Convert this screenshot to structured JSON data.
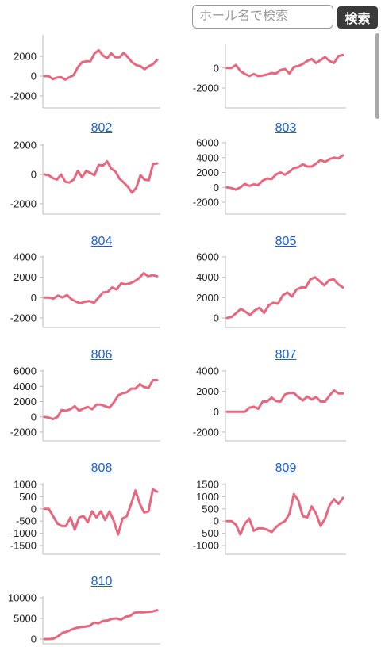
{
  "search": {
    "placeholder": "ホール名で検索",
    "button_label": "検索"
  },
  "colors": {
    "line": "#e8677f",
    "axis": "#bdbdbd",
    "link": "#1a5fd6"
  },
  "chart_data": [
    {
      "type": "line",
      "title": "",
      "ylim": [
        -2000,
        4000
      ],
      "ticks": [
        2000,
        0,
        -2000
      ],
      "values": [
        0,
        0,
        -300,
        -150,
        -100,
        -350,
        -100,
        100,
        900,
        1400,
        1500,
        1500,
        2300,
        2600,
        2100,
        1800,
        2300,
        1900,
        1900,
        2350,
        1900,
        1400,
        1100,
        1000,
        700,
        1000,
        1200,
        1650
      ]
    },
    {
      "type": "line",
      "title": "",
      "ylim": [
        -2000,
        2200
      ],
      "ticks": [
        0,
        -2000
      ],
      "values": [
        0,
        0,
        300,
        -300,
        -600,
        -800,
        -600,
        -800,
        -750,
        -650,
        -500,
        -550,
        -200,
        -100,
        -550,
        100,
        200,
        400,
        700,
        900,
        500,
        800,
        1100,
        700,
        500,
        1200,
        1300
      ]
    },
    {
      "type": "line",
      "title": "802",
      "ylim": [
        -2000,
        2000
      ],
      "ticks": [
        2000,
        0,
        -2000
      ],
      "values": [
        0,
        -50,
        -250,
        -350,
        0,
        -500,
        -550,
        -350,
        250,
        -200,
        250,
        100,
        -50,
        650,
        600,
        900,
        400,
        200,
        -300,
        -550,
        -850,
        -1250,
        -900,
        -50,
        -350,
        -400,
        700,
        750
      ]
    },
    {
      "type": "line",
      "title": "803",
      "ylim": [
        -2000,
        6000
      ],
      "ticks": [
        6000,
        4000,
        2000,
        0,
        -2000
      ],
      "values": [
        0,
        -100,
        -300,
        0,
        450,
        200,
        400,
        300,
        900,
        1200,
        1100,
        1750,
        2000,
        1700,
        2100,
        2600,
        2700,
        3100,
        2800,
        2800,
        3200,
        3700,
        3400,
        3800,
        4000,
        3900,
        4300
      ]
    },
    {
      "type": "line",
      "title": "804",
      "ylim": [
        -2000,
        4000
      ],
      "ticks": [
        4000,
        2000,
        0,
        -2000
      ],
      "values": [
        0,
        0,
        -100,
        200,
        0,
        250,
        -150,
        -400,
        -550,
        -400,
        -350,
        -500,
        0,
        500,
        550,
        1000,
        800,
        1400,
        1300,
        1400,
        1600,
        1900,
        2400,
        2100,
        2200,
        2100
      ]
    },
    {
      "type": "line",
      "title": "805",
      "ylim": [
        0,
        6000
      ],
      "ticks": [
        6000,
        4000,
        2000,
        0
      ],
      "values": [
        0,
        100,
        500,
        900,
        600,
        300,
        750,
        1000,
        500,
        1250,
        1500,
        1400,
        2200,
        2500,
        2100,
        2800,
        3000,
        3000,
        3800,
        4000,
        3600,
        3200,
        3700,
        3800,
        3300,
        3000
      ]
    },
    {
      "type": "line",
      "title": "806",
      "ylim": [
        -2000,
        6000
      ],
      "ticks": [
        6000,
        4000,
        2000,
        0,
        -2000
      ],
      "values": [
        0,
        -100,
        -300,
        0,
        900,
        800,
        1000,
        1400,
        800,
        1100,
        1300,
        1000,
        1600,
        1600,
        1400,
        1200,
        1900,
        2800,
        3100,
        3200,
        3700,
        3700,
        4300,
        3900,
        3800,
        4800,
        4800
      ]
    },
    {
      "type": "line",
      "title": "807",
      "ylim": [
        -2000,
        4000
      ],
      "ticks": [
        4000,
        2000,
        0,
        -2000
      ],
      "values": [
        0,
        0,
        0,
        0,
        0,
        400,
        500,
        300,
        1000,
        1000,
        1400,
        1050,
        1000,
        1700,
        1850,
        1850,
        1450,
        1100,
        1500,
        1200,
        1450,
        1000,
        1000,
        1600,
        2100,
        1800,
        1800
      ]
    },
    {
      "type": "line",
      "title": "808",
      "ylim": [
        -1500,
        1000
      ],
      "ticks": [
        1000,
        500,
        0,
        -500,
        -1000,
        -1500
      ],
      "values": [
        0,
        0,
        -300,
        -600,
        -700,
        -700,
        -350,
        -850,
        -350,
        -300,
        -550,
        -100,
        -350,
        -100,
        -450,
        -100,
        -500,
        -1050,
        -400,
        -300,
        200,
        750,
        200,
        -150,
        -100,
        800,
        700
      ]
    },
    {
      "type": "line",
      "title": "809",
      "ylim": [
        -1000,
        1500
      ],
      "ticks": [
        1500,
        1000,
        500,
        0,
        -500,
        -1000
      ],
      "values": [
        0,
        0,
        -150,
        -550,
        -100,
        100,
        -400,
        -300,
        -300,
        -350,
        -450,
        -250,
        -100,
        0,
        300,
        1100,
        850,
        200,
        150,
        600,
        300,
        -200,
        100,
        650,
        900,
        700,
        950
      ]
    },
    {
      "type": "line",
      "title": "810",
      "ylim": [
        0,
        10000
      ],
      "ticks": [
        10000,
        5000,
        0
      ],
      "values": [
        0,
        0,
        100,
        700,
        1500,
        1800,
        2300,
        2700,
        2900,
        3000,
        3200,
        4000,
        3800,
        4400,
        4500,
        4900,
        5000,
        4700,
        5400,
        5600,
        6400,
        6500,
        6500,
        6600,
        6700,
        7000
      ]
    }
  ]
}
